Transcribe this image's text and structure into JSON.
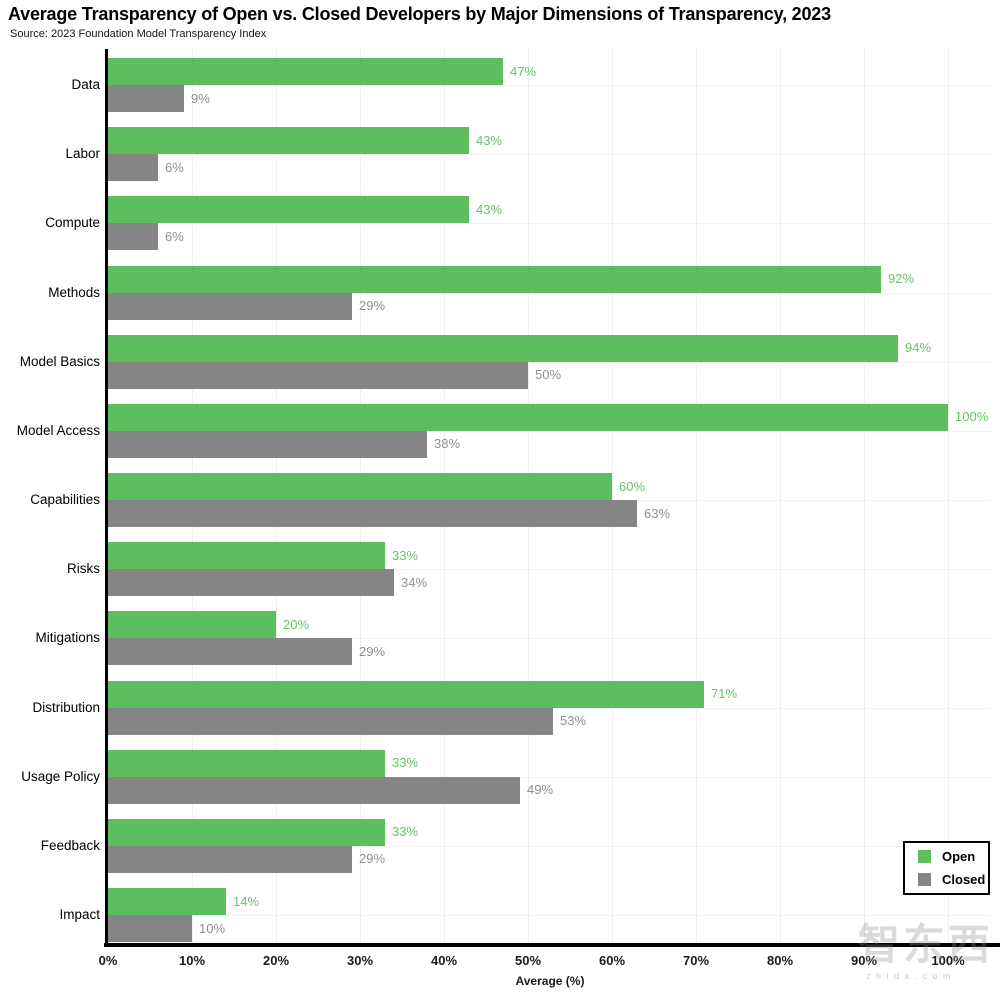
{
  "title": "Average Transparency of Open vs. Closed Developers by Major Dimensions of Transparency, 2023",
  "source": "Source: 2023 Foundation Model Transparency Index",
  "chart_data": {
    "type": "bar",
    "orientation": "horizontal",
    "title": "Average Transparency of Open vs. Closed Developers by Major Dimensions of Transparency, 2023",
    "subtitle": "Source: 2023 Foundation Model Transparency Index",
    "categories": [
      "Data",
      "Labor",
      "Compute",
      "Methods",
      "Model Basics",
      "Model Access",
      "Capabilities",
      "Risks",
      "Mitigations",
      "Distribution",
      "Usage Policy",
      "Feedback",
      "Impact"
    ],
    "series": [
      {
        "name": "Open",
        "color": "#5dbe60",
        "label_color": "#69c16b",
        "values": [
          47,
          43,
          43,
          92,
          94,
          100,
          60,
          33,
          20,
          71,
          33,
          33,
          14
        ]
      },
      {
        "name": "Closed",
        "color": "#858585",
        "label_color": "#8f8f8f",
        "values": [
          9,
          6,
          6,
          29,
          50,
          38,
          63,
          34,
          29,
          53,
          49,
          29,
          10
        ]
      }
    ],
    "value_suffix": "%",
    "xlabel": "Average (%)",
    "xlim": [
      0,
      105
    ],
    "xtick_values": [
      0,
      10,
      20,
      30,
      40,
      50,
      60,
      70,
      80,
      90,
      100
    ],
    "xtick_labels": [
      "0%",
      "10%",
      "20%",
      "30%",
      "40%",
      "50%",
      "60%",
      "70%",
      "80%",
      "90%",
      "100%"
    ],
    "grid": true,
    "legend_position": "right-bottom"
  },
  "legend": {
    "items": [
      {
        "label": "Open",
        "color": "#5dbe60"
      },
      {
        "label": "Closed",
        "color": "#858585"
      }
    ]
  },
  "watermark": {
    "text": "智东西",
    "subtext": "zhidx.com"
  }
}
